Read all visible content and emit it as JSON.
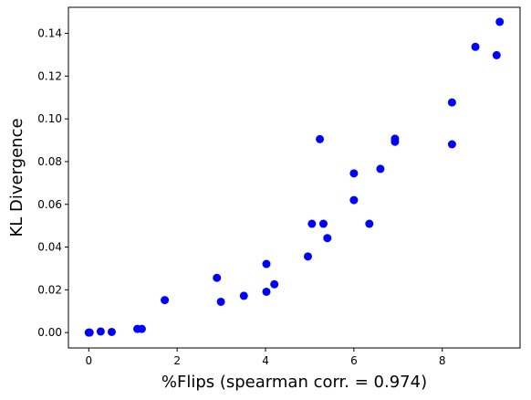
{
  "chart_data": {
    "type": "scatter",
    "title": "",
    "xlabel": "%Flips (spearman corr. = 0.974)",
    "ylabel": "KL Divergence",
    "xlim": [
      -0.46,
      9.76
    ],
    "ylim": [
      -0.0072,
      0.1522
    ],
    "xticks": [
      0,
      2,
      4,
      6,
      8
    ],
    "yticks": [
      0.0,
      0.02,
      0.04,
      0.06,
      0.08,
      0.1,
      0.12,
      0.14
    ],
    "marker_color": "#0000ff",
    "grid": false,
    "legend": "none",
    "series": [
      {
        "points": [
          {
            "x": 0.0,
            "y": 0.0
          },
          {
            "x": 0.02,
            "y": 0.0
          },
          {
            "x": 0.27,
            "y": 0.0005
          },
          {
            "x": 0.52,
            "y": 0.0003
          },
          {
            "x": 1.1,
            "y": 0.0017
          },
          {
            "x": 1.2,
            "y": 0.0017
          },
          {
            "x": 1.72,
            "y": 0.0152
          },
          {
            "x": 2.9,
            "y": 0.0256
          },
          {
            "x": 2.99,
            "y": 0.0144
          },
          {
            "x": 3.51,
            "y": 0.0172
          },
          {
            "x": 4.02,
            "y": 0.0321
          },
          {
            "x": 4.02,
            "y": 0.0191
          },
          {
            "x": 4.2,
            "y": 0.0226
          },
          {
            "x": 4.96,
            "y": 0.0356
          },
          {
            "x": 5.05,
            "y": 0.0509
          },
          {
            "x": 5.23,
            "y": 0.0905
          },
          {
            "x": 5.31,
            "y": 0.0509
          },
          {
            "x": 5.4,
            "y": 0.0442
          },
          {
            "x": 6.0,
            "y": 0.0745
          },
          {
            "x": 6.0,
            "y": 0.062
          },
          {
            "x": 6.35,
            "y": 0.0509
          },
          {
            "x": 6.6,
            "y": 0.0766
          },
          {
            "x": 6.93,
            "y": 0.0907
          },
          {
            "x": 6.93,
            "y": 0.0893
          },
          {
            "x": 8.22,
            "y": 0.1077
          },
          {
            "x": 8.22,
            "y": 0.0881
          },
          {
            "x": 8.75,
            "y": 0.1337
          },
          {
            "x": 9.23,
            "y": 0.1298
          },
          {
            "x": 9.3,
            "y": 0.1454
          }
        ]
      }
    ]
  }
}
